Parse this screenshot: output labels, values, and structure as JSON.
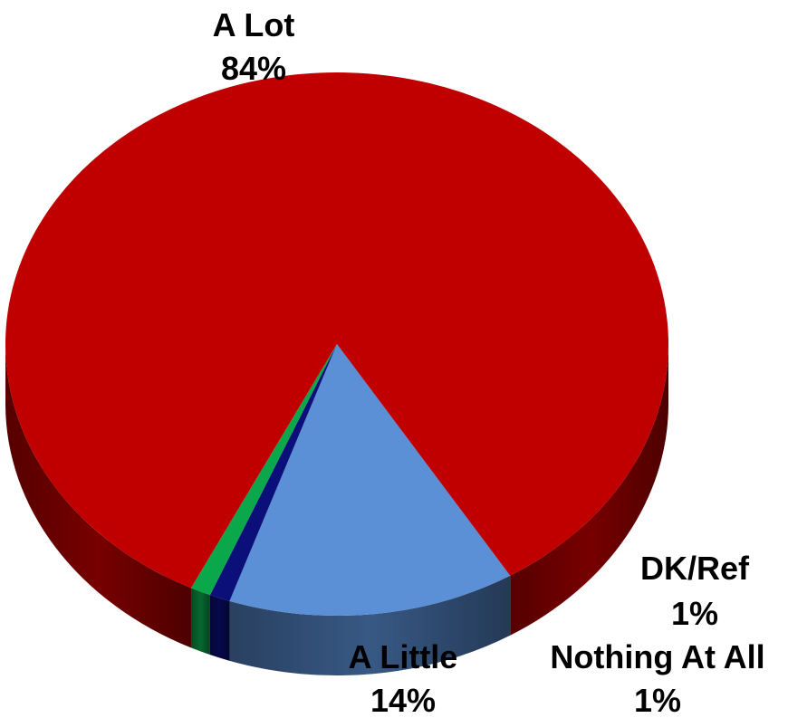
{
  "chart_data": {
    "type": "pie",
    "style": "3d",
    "categories": [
      "A Lot",
      "A Little",
      "Nothing At All",
      "DK/Ref"
    ],
    "values": [
      84,
      14,
      1,
      1
    ],
    "value_labels": [
      "84%",
      "14%",
      "1%",
      "1%"
    ],
    "colors": [
      "#c00000",
      "#5b8fd6",
      "#0b0f7a",
      "#0aa84a"
    ],
    "title": "",
    "legend": "none"
  }
}
